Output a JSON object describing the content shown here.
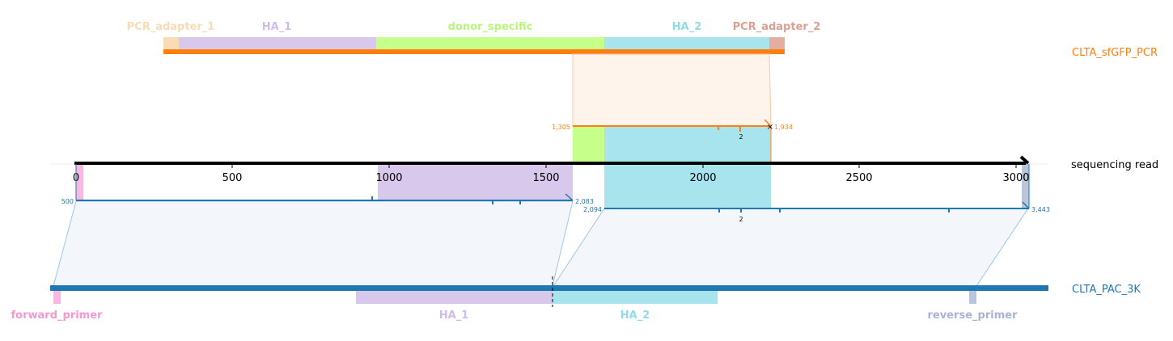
{
  "colors": {
    "pcr_track": "#ff7f0e",
    "read_track": "#000000",
    "ref_track": "#1f77b4",
    "pcr_adapter_1": "#f7dcb4",
    "pcr_adapter_2": "#e3ada0",
    "ha_1": "#d8c8ec",
    "donor_specific": "#c6ff8a",
    "ha_2": "#a8e4ee",
    "forward_primer": "#f9b8e0",
    "reverse_primer": "#b9c4dd"
  },
  "tracks": {
    "pcr": "CLTA_sfGFP_PCR",
    "read": "sequencing read",
    "ref": "CLTA_PAC_3K"
  },
  "features": {
    "pcr_adapter_1": "PCR_adapter_1",
    "ha_1_top": "HA_1",
    "donor_specific": "donor_specific",
    "ha_2_top": "HA_2",
    "pcr_adapter_2": "PCR_adapter_2",
    "forward_primer": "forward_primer",
    "ha_1_bottom": "HA_1",
    "ha_2_bottom": "HA_2",
    "reverse_primer": "reverse_primer"
  },
  "axis": {
    "ticks": [
      "0",
      "500",
      "1000",
      "1500",
      "2000",
      "2500",
      "3000"
    ]
  },
  "alignments": {
    "pcr": {
      "start": "1,305",
      "end": "1,934",
      "mismatch": "2"
    },
    "ref_left": {
      "start": "500",
      "end": "2,083"
    },
    "ref_right": {
      "start": "2,094",
      "end": "3,443",
      "mismatch": "2"
    }
  }
}
